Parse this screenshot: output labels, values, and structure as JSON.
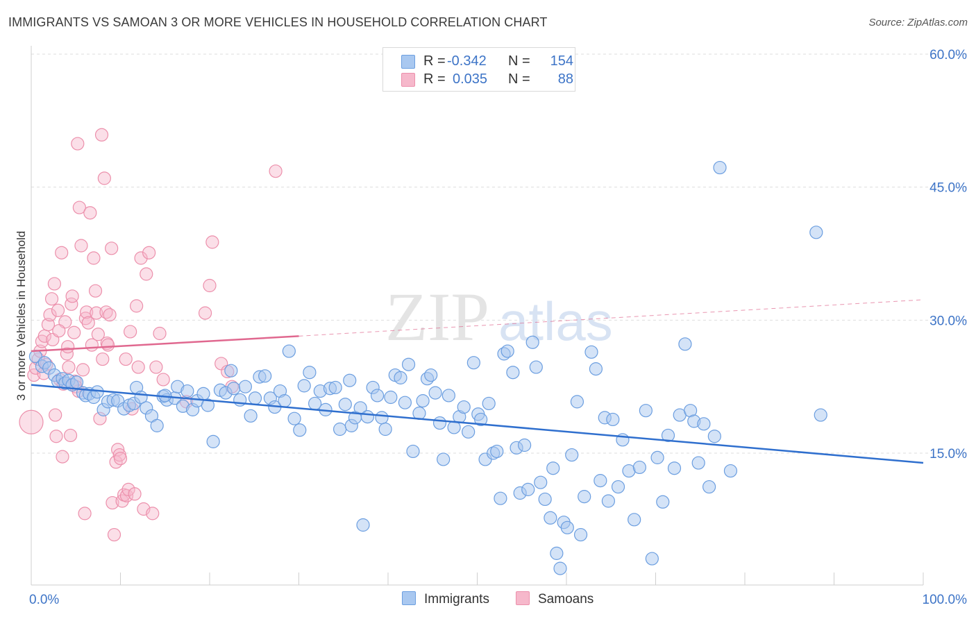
{
  "title": "IMMIGRANTS VS SAMOAN 3 OR MORE VEHICLES IN HOUSEHOLD CORRELATION CHART",
  "source": "Source: ZipAtlas.com",
  "watermark": {
    "zip": "ZIP",
    "atlas": "atlas"
  },
  "colors": {
    "blue_fill": "#a9c8f0",
    "blue_stroke": "#6b9ee0",
    "blue_line": "#2f6fce",
    "pink_fill": "#f6b8cb",
    "pink_stroke": "#ec8fab",
    "pink_line": "#e0688f",
    "tick_label": "#3d74c7",
    "grid": "#dddddd"
  },
  "legend": {
    "r_label": "R =",
    "n_label": "N =",
    "rows": [
      {
        "r": "-0.342",
        "n": "154"
      },
      {
        "r": "0.035",
        "n": "88"
      }
    ]
  },
  "chart_data": {
    "type": "scatter",
    "title": "IMMIGRANTS VS SAMOAN 3 OR MORE VEHICLES IN HOUSEHOLD CORRELATION CHART",
    "ylabel": "3 or more Vehicles in Household",
    "xlabel": "",
    "xlim": [
      0,
      100
    ],
    "ylim": [
      0,
      63
    ],
    "x_tick_labels": [
      "0.0%",
      "100.0%"
    ],
    "y_ticks": [
      15,
      30,
      45,
      60
    ],
    "y_tick_labels": [
      "15.0%",
      "30.0%",
      "45.0%",
      "60.0%"
    ],
    "grid": "horizontal dashed",
    "legend_placement": "top-center",
    "series": [
      {
        "name": "Immigrants",
        "r": -0.342,
        "n": 154,
        "trend": {
          "x": [
            0,
            100
          ],
          "y": [
            22.7,
            13.9
          ],
          "style": "solid"
        },
        "points": [
          [
            0.5,
            25.9
          ],
          [
            1.2,
            24.8
          ],
          [
            1.5,
            25.2
          ],
          [
            2.0,
            24.6
          ],
          [
            2.6,
            23.8
          ],
          [
            3.0,
            23.1
          ],
          [
            3.5,
            23.4
          ],
          [
            3.8,
            22.9
          ],
          [
            4.2,
            23.2
          ],
          [
            4.6,
            22.7
          ],
          [
            5.1,
            23.0
          ],
          [
            5.8,
            21.8
          ],
          [
            6.1,
            21.5
          ],
          [
            6.5,
            21.7
          ],
          [
            7.0,
            21.3
          ],
          [
            7.4,
            21.9
          ],
          [
            8.1,
            19.9
          ],
          [
            8.6,
            20.8
          ],
          [
            9.2,
            21.0
          ],
          [
            9.7,
            20.9
          ],
          [
            10.4,
            20.0
          ],
          [
            11.0,
            20.4
          ],
          [
            11.5,
            20.6
          ],
          [
            11.8,
            22.4
          ],
          [
            12.3,
            21.3
          ],
          [
            12.9,
            20.1
          ],
          [
            13.5,
            19.2
          ],
          [
            14.1,
            18.1
          ],
          [
            14.8,
            21.4
          ],
          [
            15.2,
            21.0
          ],
          [
            16.1,
            21.2
          ],
          [
            16.4,
            22.5
          ],
          [
            17.0,
            20.3
          ],
          [
            17.5,
            22.0
          ],
          [
            18.1,
            19.9
          ],
          [
            18.6,
            20.9
          ],
          [
            19.3,
            21.7
          ],
          [
            19.8,
            20.4
          ],
          [
            20.4,
            16.3
          ],
          [
            21.2,
            22.1
          ],
          [
            21.8,
            21.8
          ],
          [
            22.4,
            24.3
          ],
          [
            22.7,
            22.3
          ],
          [
            23.4,
            21.0
          ],
          [
            24.0,
            22.5
          ],
          [
            24.6,
            19.2
          ],
          [
            25.1,
            21.2
          ],
          [
            25.6,
            23.6
          ],
          [
            26.2,
            23.7
          ],
          [
            26.8,
            21.2
          ],
          [
            27.3,
            20.2
          ],
          [
            27.9,
            22.0
          ],
          [
            28.4,
            20.9
          ],
          [
            28.9,
            26.5
          ],
          [
            29.5,
            18.9
          ],
          [
            30.1,
            17.6
          ],
          [
            30.6,
            22.6
          ],
          [
            31.2,
            24.1
          ],
          [
            31.8,
            20.6
          ],
          [
            32.4,
            22.0
          ],
          [
            33.0,
            19.9
          ],
          [
            33.5,
            22.3
          ],
          [
            34.1,
            22.4
          ],
          [
            34.6,
            17.7
          ],
          [
            35.2,
            20.5
          ],
          [
            35.7,
            23.2
          ],
          [
            35.9,
            18.1
          ],
          [
            36.3,
            19.0
          ],
          [
            36.9,
            20.1
          ],
          [
            37.2,
            6.9
          ],
          [
            37.7,
            19.1
          ],
          [
            38.3,
            22.4
          ],
          [
            38.8,
            21.5
          ],
          [
            39.3,
            19.0
          ],
          [
            39.7,
            17.7
          ],
          [
            40.3,
            21.3
          ],
          [
            40.8,
            23.8
          ],
          [
            41.4,
            23.5
          ],
          [
            41.9,
            20.7
          ],
          [
            42.3,
            25.0
          ],
          [
            42.8,
            15.2
          ],
          [
            43.5,
            19.5
          ],
          [
            43.9,
            20.9
          ],
          [
            44.4,
            23.4
          ],
          [
            44.8,
            23.8
          ],
          [
            45.3,
            21.8
          ],
          [
            45.8,
            18.4
          ],
          [
            46.2,
            14.3
          ],
          [
            46.8,
            21.5
          ],
          [
            47.4,
            17.9
          ],
          [
            48.0,
            19.1
          ],
          [
            48.5,
            20.2
          ],
          [
            49.0,
            17.4
          ],
          [
            49.6,
            25.2
          ],
          [
            50.1,
            19.4
          ],
          [
            50.4,
            18.8
          ],
          [
            50.9,
            14.3
          ],
          [
            51.3,
            20.6
          ],
          [
            51.8,
            15.0
          ],
          [
            52.2,
            15.2
          ],
          [
            52.6,
            9.9
          ],
          [
            53.0,
            26.2
          ],
          [
            53.4,
            26.5
          ],
          [
            54.0,
            24.1
          ],
          [
            54.4,
            15.6
          ],
          [
            54.8,
            10.5
          ],
          [
            55.3,
            15.9
          ],
          [
            55.7,
            10.9
          ],
          [
            56.2,
            27.5
          ],
          [
            56.6,
            24.7
          ],
          [
            57.1,
            11.7
          ],
          [
            57.6,
            9.8
          ],
          [
            58.2,
            7.7
          ],
          [
            58.5,
            13.3
          ],
          [
            58.9,
            3.7
          ],
          [
            59.3,
            2.0
          ],
          [
            59.7,
            7.2
          ],
          [
            60.1,
            6.6
          ],
          [
            60.6,
            14.8
          ],
          [
            61.2,
            20.8
          ],
          [
            61.6,
            5.8
          ],
          [
            62.0,
            10.1
          ],
          [
            62.8,
            26.4
          ],
          [
            63.3,
            24.5
          ],
          [
            63.8,
            11.9
          ],
          [
            64.3,
            19.0
          ],
          [
            64.7,
            9.6
          ],
          [
            65.2,
            18.8
          ],
          [
            65.8,
            11.2
          ],
          [
            66.3,
            16.5
          ],
          [
            67.0,
            13.0
          ],
          [
            67.6,
            7.5
          ],
          [
            68.2,
            13.4
          ],
          [
            68.9,
            19.8
          ],
          [
            69.6,
            3.1
          ],
          [
            70.2,
            14.5
          ],
          [
            70.8,
            9.5
          ],
          [
            71.4,
            17.0
          ],
          [
            72.1,
            13.3
          ],
          [
            72.7,
            19.3
          ],
          [
            73.3,
            27.3
          ],
          [
            73.9,
            19.8
          ],
          [
            74.3,
            18.6
          ],
          [
            74.8,
            13.9
          ],
          [
            75.4,
            18.3
          ],
          [
            76.0,
            11.2
          ],
          [
            76.6,
            16.9
          ],
          [
            77.2,
            47.2
          ],
          [
            78.4,
            13.0
          ],
          [
            88.0,
            39.9
          ],
          [
            88.5,
            19.3
          ],
          [
            15.0,
            21.5
          ]
        ]
      },
      {
        "name": "Samoans",
        "r": 0.035,
        "n": 88,
        "trend": {
          "x": [
            0,
            30
          ],
          "y": [
            26.5,
            28.2
          ],
          "style": "solid"
        },
        "trend_extension": {
          "x": [
            30,
            100
          ],
          "y": [
            28.2,
            32.3
          ],
          "style": "dashed"
        },
        "points": [
          [
            0.0,
            18.5
          ],
          [
            0.3,
            23.8
          ],
          [
            0.5,
            24.6
          ],
          [
            0.8,
            25.6
          ],
          [
            1.0,
            26.5
          ],
          [
            1.2,
            27.6
          ],
          [
            1.5,
            28.2
          ],
          [
            1.7,
            25.0
          ],
          [
            1.9,
            29.5
          ],
          [
            2.1,
            30.6
          ],
          [
            2.3,
            32.4
          ],
          [
            2.4,
            27.8
          ],
          [
            2.6,
            34.1
          ],
          [
            2.7,
            19.3
          ],
          [
            2.8,
            16.9
          ],
          [
            3.0,
            31.1
          ],
          [
            3.2,
            23.3
          ],
          [
            3.4,
            37.6
          ],
          [
            3.5,
            14.6
          ],
          [
            3.6,
            22.8
          ],
          [
            3.8,
            29.8
          ],
          [
            4.0,
            26.2
          ],
          [
            4.1,
            27.0
          ],
          [
            4.2,
            24.7
          ],
          [
            4.4,
            17.0
          ],
          [
            4.5,
            31.8
          ],
          [
            4.6,
            32.7
          ],
          [
            4.8,
            28.6
          ],
          [
            4.9,
            23.1
          ],
          [
            5.0,
            22.5
          ],
          [
            5.2,
            49.9
          ],
          [
            5.3,
            22.0
          ],
          [
            5.4,
            42.7
          ],
          [
            5.6,
            38.4
          ],
          [
            5.8,
            24.4
          ],
          [
            6.0,
            8.2
          ],
          [
            6.1,
            30.2
          ],
          [
            6.2,
            30.9
          ],
          [
            6.4,
            29.7
          ],
          [
            6.6,
            42.1
          ],
          [
            6.8,
            27.2
          ],
          [
            7.0,
            37.0
          ],
          [
            7.2,
            33.3
          ],
          [
            7.3,
            30.8
          ],
          [
            7.5,
            28.4
          ],
          [
            7.7,
            18.9
          ],
          [
            7.9,
            50.9
          ],
          [
            8.0,
            25.6
          ],
          [
            8.2,
            46.0
          ],
          [
            8.4,
            30.9
          ],
          [
            8.5,
            27.4
          ],
          [
            8.6,
            27.2
          ],
          [
            8.8,
            30.6
          ],
          [
            9.0,
            38.1
          ],
          [
            9.1,
            9.4
          ],
          [
            9.3,
            5.8
          ],
          [
            9.5,
            14.0
          ],
          [
            9.7,
            15.4
          ],
          [
            9.9,
            14.8
          ],
          [
            10.0,
            14.4
          ],
          [
            10.2,
            9.6
          ],
          [
            10.4,
            10.3
          ],
          [
            10.6,
            25.6
          ],
          [
            10.7,
            10.2
          ],
          [
            10.9,
            10.9
          ],
          [
            11.1,
            28.7
          ],
          [
            11.3,
            20.0
          ],
          [
            11.6,
            10.4
          ],
          [
            11.8,
            31.6
          ],
          [
            12.0,
            24.7
          ],
          [
            12.3,
            37.0
          ],
          [
            12.6,
            8.7
          ],
          [
            12.9,
            35.2
          ],
          [
            13.2,
            37.6
          ],
          [
            13.6,
            8.2
          ],
          [
            14.0,
            24.7
          ],
          [
            14.4,
            28.5
          ],
          [
            14.8,
            23.3
          ],
          [
            17.4,
            20.8
          ],
          [
            19.5,
            30.8
          ],
          [
            20.0,
            33.9
          ],
          [
            20.3,
            38.8
          ],
          [
            21.3,
            25.1
          ],
          [
            22.0,
            24.2
          ],
          [
            22.5,
            22.5
          ],
          [
            27.4,
            46.8
          ],
          [
            1.4,
            24.0
          ],
          [
            3.1,
            28.8
          ]
        ]
      }
    ]
  },
  "bottom_legend": [
    {
      "name": "Immigrants"
    },
    {
      "name": "Samoans"
    }
  ]
}
